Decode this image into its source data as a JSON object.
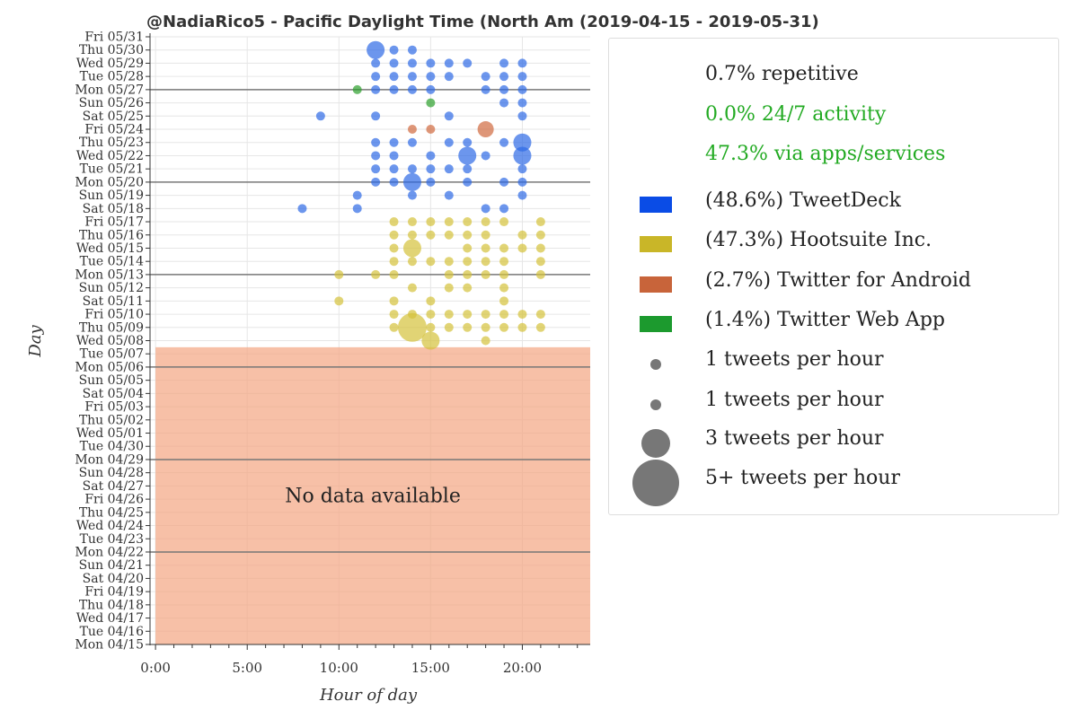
{
  "chart_data": {
    "type": "scatter",
    "title": "@NadiaRico5 - Pacific Daylight Time (North Am  (2019-04-15 - 2019-05-31)",
    "xlabel": "Hour of day",
    "ylabel": "Day",
    "xlim": [
      -0.3,
      23.7
    ],
    "x_ticks": [
      "0:00",
      "5:00",
      "10:00",
      "15:00",
      "20:00"
    ],
    "x_tick_values": [
      0,
      5,
      10,
      15,
      20
    ],
    "days": [
      "Mon 04/15",
      "Tue 04/16",
      "Wed 04/17",
      "Thu 04/18",
      "Fri 04/19",
      "Sat 04/20",
      "Sun 04/21",
      "Mon 04/22",
      "Tue 04/23",
      "Wed 04/24",
      "Thu 04/25",
      "Fri 04/26",
      "Sat 04/27",
      "Sun 04/28",
      "Mon 04/29",
      "Tue 04/30",
      "Wed 05/01",
      "Thu 05/02",
      "Fri 05/03",
      "Sat 05/04",
      "Sun 05/05",
      "Mon 05/06",
      "Tue 05/07",
      "Wed 05/08",
      "Thu 05/09",
      "Fri 05/10",
      "Sat 05/11",
      "Sun 05/12",
      "Mon 05/13",
      "Tue 05/14",
      "Wed 05/15",
      "Thu 05/16",
      "Fri 05/17",
      "Sat 05/18",
      "Sun 05/19",
      "Mon 05/20",
      "Tue 05/21",
      "Wed 05/22",
      "Thu 05/23",
      "Fri 05/24",
      "Sat 05/25",
      "Sun 05/26",
      "Mon 05/27",
      "Tue 05/28",
      "Wed 05/29",
      "Thu 05/30",
      "Fri 05/31"
    ],
    "week_lines": [
      "Mon 04/22",
      "Mon 04/29",
      "Mon 05/06",
      "Mon 05/13",
      "Mon 05/20",
      "Mon 05/27"
    ],
    "no_data": {
      "from": "Mon 04/15",
      "to": "Tue 05/07",
      "label": "No data available",
      "color": "#f4a582"
    },
    "series": [
      {
        "name": "TweetDeck",
        "color": "#2e6ae6",
        "points": [
          {
            "day": "Thu 05/30",
            "hour": 12,
            "n": 3
          },
          {
            "day": "Thu 05/30",
            "hour": 13,
            "n": 1
          },
          {
            "day": "Thu 05/30",
            "hour": 14,
            "n": 1
          },
          {
            "day": "Wed 05/29",
            "hour": 12,
            "n": 1
          },
          {
            "day": "Wed 05/29",
            "hour": 13,
            "n": 1
          },
          {
            "day": "Wed 05/29",
            "hour": 14,
            "n": 1
          },
          {
            "day": "Wed 05/29",
            "hour": 15,
            "n": 1
          },
          {
            "day": "Wed 05/29",
            "hour": 16,
            "n": 1
          },
          {
            "day": "Wed 05/29",
            "hour": 17,
            "n": 1
          },
          {
            "day": "Wed 05/29",
            "hour": 19,
            "n": 1
          },
          {
            "day": "Wed 05/29",
            "hour": 20,
            "n": 1
          },
          {
            "day": "Tue 05/28",
            "hour": 12,
            "n": 1
          },
          {
            "day": "Tue 05/28",
            "hour": 13,
            "n": 1
          },
          {
            "day": "Tue 05/28",
            "hour": 14,
            "n": 1
          },
          {
            "day": "Tue 05/28",
            "hour": 15,
            "n": 1
          },
          {
            "day": "Tue 05/28",
            "hour": 16,
            "n": 1
          },
          {
            "day": "Tue 05/28",
            "hour": 18,
            "n": 1
          },
          {
            "day": "Tue 05/28",
            "hour": 19,
            "n": 1
          },
          {
            "day": "Tue 05/28",
            "hour": 20,
            "n": 1
          },
          {
            "day": "Mon 05/27",
            "hour": 12,
            "n": 1
          },
          {
            "day": "Mon 05/27",
            "hour": 13,
            "n": 1
          },
          {
            "day": "Mon 05/27",
            "hour": 14,
            "n": 1
          },
          {
            "day": "Mon 05/27",
            "hour": 15,
            "n": 1
          },
          {
            "day": "Mon 05/27",
            "hour": 18,
            "n": 1
          },
          {
            "day": "Mon 05/27",
            "hour": 19,
            "n": 1
          },
          {
            "day": "Mon 05/27",
            "hour": 20,
            "n": 1
          },
          {
            "day": "Sun 05/26",
            "hour": 19,
            "n": 1
          },
          {
            "day": "Sun 05/26",
            "hour": 20,
            "n": 1
          },
          {
            "day": "Sat 05/25",
            "hour": 9,
            "n": 1
          },
          {
            "day": "Sat 05/25",
            "hour": 12,
            "n": 1
          },
          {
            "day": "Sat 05/25",
            "hour": 16,
            "n": 1
          },
          {
            "day": "Sat 05/25",
            "hour": 20,
            "n": 1
          },
          {
            "day": "Thu 05/23",
            "hour": 12,
            "n": 1
          },
          {
            "day": "Thu 05/23",
            "hour": 13,
            "n": 1
          },
          {
            "day": "Thu 05/23",
            "hour": 14,
            "n": 1
          },
          {
            "day": "Thu 05/23",
            "hour": 16,
            "n": 1
          },
          {
            "day": "Thu 05/23",
            "hour": 17,
            "n": 1
          },
          {
            "day": "Thu 05/23",
            "hour": 19,
            "n": 1
          },
          {
            "day": "Thu 05/23",
            "hour": 20,
            "n": 3
          },
          {
            "day": "Wed 05/22",
            "hour": 12,
            "n": 1
          },
          {
            "day": "Wed 05/22",
            "hour": 13,
            "n": 1
          },
          {
            "day": "Wed 05/22",
            "hour": 15,
            "n": 1
          },
          {
            "day": "Wed 05/22",
            "hour": 17,
            "n": 3
          },
          {
            "day": "Wed 05/22",
            "hour": 18,
            "n": 1
          },
          {
            "day": "Wed 05/22",
            "hour": 20,
            "n": 3
          },
          {
            "day": "Tue 05/21",
            "hour": 12,
            "n": 1
          },
          {
            "day": "Tue 05/21",
            "hour": 13,
            "n": 1
          },
          {
            "day": "Tue 05/21",
            "hour": 14,
            "n": 1
          },
          {
            "day": "Tue 05/21",
            "hour": 15,
            "n": 1
          },
          {
            "day": "Tue 05/21",
            "hour": 16,
            "n": 1
          },
          {
            "day": "Tue 05/21",
            "hour": 17,
            "n": 1
          },
          {
            "day": "Tue 05/21",
            "hour": 20,
            "n": 1
          },
          {
            "day": "Mon 05/20",
            "hour": 12,
            "n": 1
          },
          {
            "day": "Mon 05/20",
            "hour": 13,
            "n": 1
          },
          {
            "day": "Mon 05/20",
            "hour": 14,
            "n": 3
          },
          {
            "day": "Mon 05/20",
            "hour": 15,
            "n": 1
          },
          {
            "day": "Mon 05/20",
            "hour": 17,
            "n": 1
          },
          {
            "day": "Mon 05/20",
            "hour": 19,
            "n": 1
          },
          {
            "day": "Mon 05/20",
            "hour": 20,
            "n": 1
          },
          {
            "day": "Sun 05/19",
            "hour": 11,
            "n": 1
          },
          {
            "day": "Sun 05/19",
            "hour": 14,
            "n": 1
          },
          {
            "day": "Sun 05/19",
            "hour": 16,
            "n": 1
          },
          {
            "day": "Sun 05/19",
            "hour": 20,
            "n": 1
          },
          {
            "day": "Sat 05/18",
            "hour": 8,
            "n": 1
          },
          {
            "day": "Sat 05/18",
            "hour": 11,
            "n": 1
          },
          {
            "day": "Sat 05/18",
            "hour": 18,
            "n": 1
          },
          {
            "day": "Sat 05/18",
            "hour": 19,
            "n": 1
          }
        ]
      },
      {
        "name": "Hootsuite Inc.",
        "color": "#d4c23a",
        "points": [
          {
            "day": "Fri 05/17",
            "hour": 13,
            "n": 1
          },
          {
            "day": "Fri 05/17",
            "hour": 14,
            "n": 1
          },
          {
            "day": "Fri 05/17",
            "hour": 15,
            "n": 1
          },
          {
            "day": "Fri 05/17",
            "hour": 16,
            "n": 1
          },
          {
            "day": "Fri 05/17",
            "hour": 17,
            "n": 1
          },
          {
            "day": "Fri 05/17",
            "hour": 18,
            "n": 1
          },
          {
            "day": "Fri 05/17",
            "hour": 19,
            "n": 1
          },
          {
            "day": "Fri 05/17",
            "hour": 21,
            "n": 1
          },
          {
            "day": "Thu 05/16",
            "hour": 13,
            "n": 1
          },
          {
            "day": "Thu 05/16",
            "hour": 14,
            "n": 1
          },
          {
            "day": "Thu 05/16",
            "hour": 15,
            "n": 1
          },
          {
            "day": "Thu 05/16",
            "hour": 16,
            "n": 1
          },
          {
            "day": "Thu 05/16",
            "hour": 17,
            "n": 1
          },
          {
            "day": "Thu 05/16",
            "hour": 18,
            "n": 1
          },
          {
            "day": "Thu 05/16",
            "hour": 20,
            "n": 1
          },
          {
            "day": "Thu 05/16",
            "hour": 21,
            "n": 1
          },
          {
            "day": "Wed 05/15",
            "hour": 13,
            "n": 1
          },
          {
            "day": "Wed 05/15",
            "hour": 14,
            "n": 3
          },
          {
            "day": "Wed 05/15",
            "hour": 17,
            "n": 1
          },
          {
            "day": "Wed 05/15",
            "hour": 18,
            "n": 1
          },
          {
            "day": "Wed 05/15",
            "hour": 19,
            "n": 1
          },
          {
            "day": "Wed 05/15",
            "hour": 20,
            "n": 1
          },
          {
            "day": "Wed 05/15",
            "hour": 21,
            "n": 1
          },
          {
            "day": "Tue 05/14",
            "hour": 13,
            "n": 1
          },
          {
            "day": "Tue 05/14",
            "hour": 14,
            "n": 1
          },
          {
            "day": "Tue 05/14",
            "hour": 15,
            "n": 1
          },
          {
            "day": "Tue 05/14",
            "hour": 16,
            "n": 1
          },
          {
            "day": "Tue 05/14",
            "hour": 17,
            "n": 1
          },
          {
            "day": "Tue 05/14",
            "hour": 18,
            "n": 1
          },
          {
            "day": "Tue 05/14",
            "hour": 19,
            "n": 1
          },
          {
            "day": "Tue 05/14",
            "hour": 21,
            "n": 1
          },
          {
            "day": "Mon 05/13",
            "hour": 10,
            "n": 1
          },
          {
            "day": "Mon 05/13",
            "hour": 12,
            "n": 1
          },
          {
            "day": "Mon 05/13",
            "hour": 13,
            "n": 1
          },
          {
            "day": "Mon 05/13",
            "hour": 16,
            "n": 1
          },
          {
            "day": "Mon 05/13",
            "hour": 17,
            "n": 1
          },
          {
            "day": "Mon 05/13",
            "hour": 18,
            "n": 1
          },
          {
            "day": "Mon 05/13",
            "hour": 19,
            "n": 1
          },
          {
            "day": "Mon 05/13",
            "hour": 21,
            "n": 1
          },
          {
            "day": "Sun 05/12",
            "hour": 14,
            "n": 1
          },
          {
            "day": "Sun 05/12",
            "hour": 16,
            "n": 1
          },
          {
            "day": "Sun 05/12",
            "hour": 17,
            "n": 1
          },
          {
            "day": "Sun 05/12",
            "hour": 19,
            "n": 1
          },
          {
            "day": "Sat 05/11",
            "hour": 10,
            "n": 1
          },
          {
            "day": "Sat 05/11",
            "hour": 13,
            "n": 1
          },
          {
            "day": "Sat 05/11",
            "hour": 15,
            "n": 1
          },
          {
            "day": "Sat 05/11",
            "hour": 19,
            "n": 1
          },
          {
            "day": "Fri 05/10",
            "hour": 13,
            "n": 1
          },
          {
            "day": "Fri 05/10",
            "hour": 14,
            "n": 1
          },
          {
            "day": "Fri 05/10",
            "hour": 15,
            "n": 1
          },
          {
            "day": "Fri 05/10",
            "hour": 16,
            "n": 1
          },
          {
            "day": "Fri 05/10",
            "hour": 17,
            "n": 1
          },
          {
            "day": "Fri 05/10",
            "hour": 18,
            "n": 1
          },
          {
            "day": "Fri 05/10",
            "hour": 19,
            "n": 1
          },
          {
            "day": "Fri 05/10",
            "hour": 20,
            "n": 1
          },
          {
            "day": "Fri 05/10",
            "hour": 21,
            "n": 1
          },
          {
            "day": "Thu 05/09",
            "hour": 13,
            "n": 1
          },
          {
            "day": "Thu 05/09",
            "hour": 14,
            "n": 5
          },
          {
            "day": "Thu 05/09",
            "hour": 15,
            "n": 1
          },
          {
            "day": "Thu 05/09",
            "hour": 16,
            "n": 1
          },
          {
            "day": "Thu 05/09",
            "hour": 17,
            "n": 1
          },
          {
            "day": "Thu 05/09",
            "hour": 18,
            "n": 1
          },
          {
            "day": "Thu 05/09",
            "hour": 19,
            "n": 1
          },
          {
            "day": "Thu 05/09",
            "hour": 20,
            "n": 1
          },
          {
            "day": "Thu 05/09",
            "hour": 21,
            "n": 1
          },
          {
            "day": "Wed 05/08",
            "hour": 15,
            "n": 3
          },
          {
            "day": "Wed 05/08",
            "hour": 18,
            "n": 1
          }
        ]
      },
      {
        "name": "Twitter for Android",
        "color": "#d0693e",
        "points": [
          {
            "day": "Fri 05/24",
            "hour": 14,
            "n": 1
          },
          {
            "day": "Fri 05/24",
            "hour": 15,
            "n": 1
          },
          {
            "day": "Fri 05/24",
            "hour": 18,
            "n": 2
          }
        ]
      },
      {
        "name": "Twitter Web App",
        "color": "#2ca02c",
        "points": [
          {
            "day": "Mon 05/27",
            "hour": 11,
            "n": 1
          },
          {
            "day": "Sun 05/26",
            "hour": 15,
            "n": 1
          }
        ]
      }
    ]
  },
  "legend": {
    "stats": [
      {
        "text": "0.7% repetitive",
        "color": "#222222"
      },
      {
        "text": "0.0% 24/7 activity",
        "color": "#22aa22"
      },
      {
        "text": "47.3% via apps/services",
        "color": "#22aa22"
      }
    ],
    "sources": [
      {
        "label": "(48.6%) TweetDeck",
        "color": "#0a4ce6"
      },
      {
        "label": "(47.3%) Hootsuite Inc.",
        "color": "#c9b628"
      },
      {
        "label": "(2.7%) Twitter for Android",
        "color": "#c8643a"
      },
      {
        "label": "(1.4%) Twitter Web App",
        "color": "#1c9a2e"
      }
    ],
    "sizes": [
      {
        "label": "1 tweets per hour",
        "n": 1
      },
      {
        "label": "1 tweets per hour",
        "n": 1
      },
      {
        "label": "3 tweets per hour",
        "n": 3
      },
      {
        "label": "5+ tweets per hour",
        "n": 5
      }
    ]
  }
}
